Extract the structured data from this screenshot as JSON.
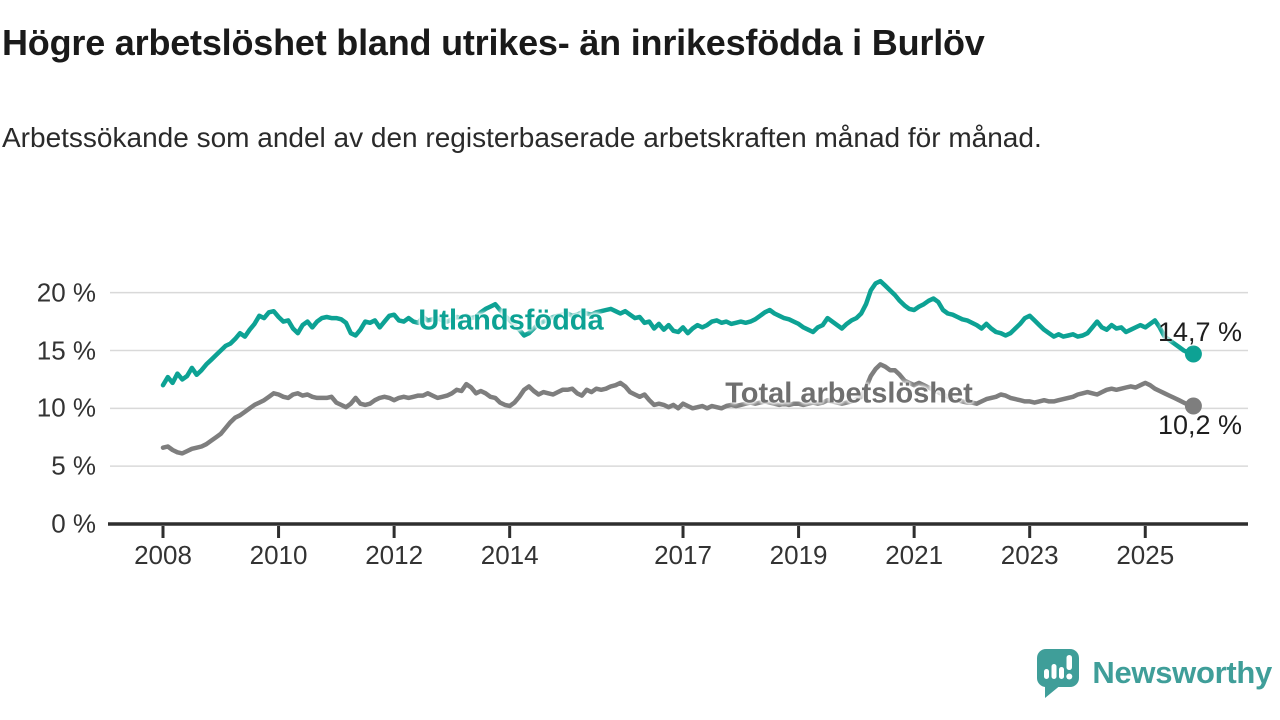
{
  "header": {
    "title": "Högre arbetslöshet bland utrikes- än inrikesfödda i Burlöv",
    "subtitle": "Arbetssökande som andel av den registerbaserade arbetskraften månad för månad."
  },
  "footer": {
    "brand": "Newsworthy"
  },
  "colors": {
    "accent_teal": "#0da294",
    "series_gray": "#7e7e7e",
    "gridline": "#d9d9d9",
    "axis": "#2e2e2e",
    "brand_teal": "#3f9e99"
  },
  "chart_data": {
    "type": "line",
    "title": "Högre arbetslöshet bland utrikes- än inrikesfödda i Burlöv",
    "xlabel": "",
    "ylabel": "",
    "unit": "%",
    "x_axis": {
      "frequency": "monthly",
      "start": "2008-01",
      "end": "2025-11",
      "tick_years": [
        2008,
        2010,
        2012,
        2014,
        2017,
        2019,
        2021,
        2023,
        2025
      ]
    },
    "y_axis": {
      "ticks": [
        0,
        5,
        10,
        15,
        20
      ],
      "tick_suffix": " %",
      "ylim": [
        0,
        22
      ],
      "grid": true
    },
    "series": [
      {
        "name": "Utlandsfödda",
        "color": "#0da294",
        "end_label": "14,7 %",
        "last_value": 14.7,
        "values": [
          12.0,
          12.7,
          12.2,
          13.0,
          12.5,
          12.8,
          13.5,
          12.9,
          13.3,
          13.8,
          14.2,
          14.6,
          15.0,
          15.4,
          15.6,
          16.0,
          16.5,
          16.2,
          16.8,
          17.3,
          18.0,
          17.8,
          18.3,
          18.4,
          17.9,
          17.5,
          17.6,
          16.9,
          16.5,
          17.2,
          17.5,
          17.0,
          17.5,
          17.8,
          17.9,
          17.8,
          17.8,
          17.7,
          17.4,
          16.5,
          16.3,
          16.8,
          17.5,
          17.4,
          17.6,
          17.0,
          17.5,
          18.0,
          18.1,
          17.6,
          17.5,
          17.8,
          17.5,
          17.4,
          17.9,
          17.6,
          17.7,
          17.8,
          17.6,
          17.5,
          17.7,
          17.9,
          17.8,
          18.0,
          17.8,
          17.9,
          18.3,
          18.6,
          18.8,
          19.0,
          18.5,
          18.0,
          17.6,
          17.2,
          16.8,
          16.3,
          16.5,
          16.9,
          17.3,
          17.5,
          17.7,
          17.9,
          18.0,
          18.1,
          18.2,
          18.0,
          18.1,
          18.3,
          18.2,
          18.1,
          18.3,
          18.4,
          18.5,
          18.6,
          18.4,
          18.2,
          18.4,
          18.1,
          17.8,
          17.9,
          17.4,
          17.5,
          16.9,
          17.3,
          16.8,
          17.2,
          16.7,
          16.6,
          17.0,
          16.5,
          16.9,
          17.2,
          17.0,
          17.2,
          17.5,
          17.6,
          17.4,
          17.5,
          17.3,
          17.4,
          17.5,
          17.4,
          17.5,
          17.7,
          18.0,
          18.3,
          18.5,
          18.2,
          18.0,
          17.8,
          17.7,
          17.5,
          17.3,
          17.0,
          16.8,
          16.6,
          17.0,
          17.2,
          17.8,
          17.5,
          17.2,
          16.9,
          17.3,
          17.6,
          17.8,
          18.2,
          19.0,
          20.2,
          20.8,
          21.0,
          20.6,
          20.2,
          19.8,
          19.3,
          18.9,
          18.6,
          18.5,
          18.8,
          19.0,
          19.3,
          19.5,
          19.2,
          18.5,
          18.2,
          18.1,
          17.9,
          17.7,
          17.6,
          17.4,
          17.2,
          16.9,
          17.3,
          16.9,
          16.6,
          16.5,
          16.3,
          16.5,
          16.9,
          17.3,
          17.8,
          18.0,
          17.6,
          17.2,
          16.8,
          16.5,
          16.2,
          16.4,
          16.2,
          16.3,
          16.4,
          16.2,
          16.3,
          16.5,
          17.0,
          17.5,
          17.0,
          16.8,
          17.2,
          16.9,
          17.0,
          16.6,
          16.8,
          17.0,
          17.2,
          17.0,
          17.3,
          17.6,
          17.0,
          16.2,
          15.9,
          15.6,
          15.3,
          15.0,
          14.8,
          14.7
        ]
      },
      {
        "name": "Total arbetslöshet",
        "color": "#7e7e7e",
        "end_label": "10,2 %",
        "last_value": 10.2,
        "values": [
          6.6,
          6.7,
          6.4,
          6.2,
          6.1,
          6.3,
          6.5,
          6.6,
          6.7,
          6.9,
          7.2,
          7.5,
          7.8,
          8.3,
          8.8,
          9.2,
          9.4,
          9.7,
          10.0,
          10.3,
          10.5,
          10.7,
          11.0,
          11.3,
          11.2,
          11.0,
          10.9,
          11.2,
          11.3,
          11.1,
          11.2,
          11.0,
          10.9,
          10.9,
          10.9,
          11.0,
          10.5,
          10.3,
          10.1,
          10.4,
          10.9,
          10.4,
          10.3,
          10.4,
          10.7,
          10.9,
          11.0,
          10.9,
          10.7,
          10.9,
          11.0,
          10.9,
          11.0,
          11.1,
          11.1,
          11.3,
          11.1,
          10.9,
          11.0,
          11.1,
          11.3,
          11.6,
          11.5,
          12.1,
          11.8,
          11.3,
          11.5,
          11.3,
          11.0,
          10.9,
          10.5,
          10.3,
          10.2,
          10.5,
          11.0,
          11.6,
          11.9,
          11.5,
          11.2,
          11.4,
          11.3,
          11.2,
          11.4,
          11.6,
          11.6,
          11.7,
          11.3,
          11.1,
          11.6,
          11.4,
          11.7,
          11.6,
          11.7,
          11.9,
          12.0,
          12.2,
          11.9,
          11.4,
          11.2,
          11.0,
          11.2,
          10.7,
          10.3,
          10.4,
          10.3,
          10.1,
          10.3,
          10.0,
          10.4,
          10.2,
          10.0,
          10.1,
          10.2,
          10.0,
          10.2,
          10.1,
          10.0,
          10.2,
          10.3,
          10.2,
          10.3,
          10.4,
          10.5,
          10.4,
          10.5,
          10.6,
          10.5,
          10.4,
          10.3,
          10.4,
          10.3,
          10.4,
          10.4,
          10.3,
          10.4,
          10.5,
          10.4,
          10.5,
          10.7,
          10.6,
          10.5,
          10.4,
          10.5,
          10.6,
          10.8,
          11.0,
          11.8,
          12.8,
          13.4,
          13.8,
          13.6,
          13.3,
          13.3,
          12.9,
          12.4,
          12.2,
          12.0,
          12.2,
          12.0,
          11.8,
          11.6,
          11.4,
          11.2,
          11.0,
          10.8,
          10.7,
          10.6,
          10.5,
          10.5,
          10.4,
          10.6,
          10.8,
          10.9,
          11.0,
          11.2,
          11.1,
          10.9,
          10.8,
          10.7,
          10.6,
          10.6,
          10.5,
          10.6,
          10.7,
          10.6,
          10.6,
          10.7,
          10.8,
          10.9,
          11.0,
          11.2,
          11.3,
          11.4,
          11.3,
          11.2,
          11.4,
          11.6,
          11.7,
          11.6,
          11.7,
          11.8,
          11.9,
          11.8,
          12.0,
          12.2,
          12.0,
          11.7,
          11.5,
          11.3,
          11.1,
          10.9,
          10.7,
          10.5,
          10.3,
          10.2
        ]
      }
    ],
    "legend_position": "inline-labels"
  }
}
